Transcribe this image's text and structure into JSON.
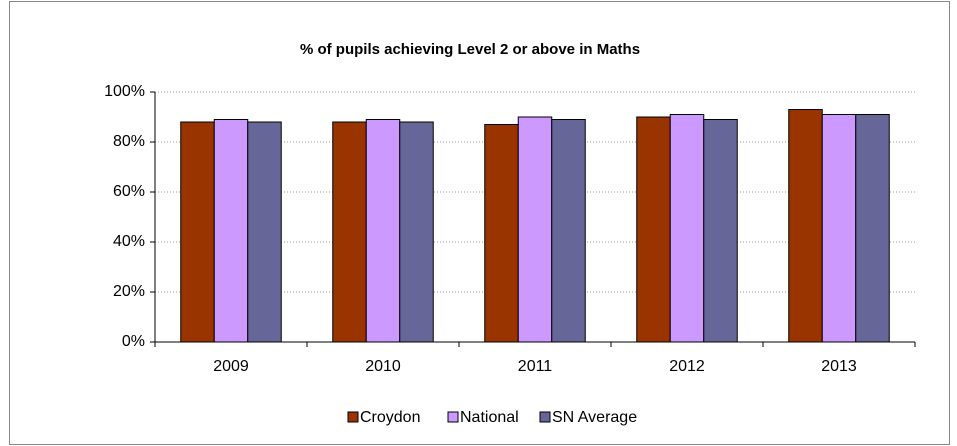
{
  "chart_data": {
    "type": "bar",
    "title": "% of pupils achieving Level 2 or above in Maths",
    "categories": [
      "2009",
      "2010",
      "2011",
      "2012",
      "2013"
    ],
    "series": [
      {
        "name": "Croydon",
        "color": "#993300",
        "values": [
          88,
          88,
          87,
          90,
          93
        ]
      },
      {
        "name": "National",
        "color": "#cc99ff",
        "values": [
          89,
          89,
          90,
          91,
          91
        ]
      },
      {
        "name": "SN Average",
        "color": "#666699",
        "values": [
          88,
          88,
          89,
          89,
          91
        ]
      }
    ],
    "ylim": [
      0,
      100
    ],
    "yticks": [
      {
        "value": 0,
        "label": "0%"
      },
      {
        "value": 20,
        "label": "20%"
      },
      {
        "value": 40,
        "label": "40%"
      },
      {
        "value": 60,
        "label": "60%"
      },
      {
        "value": 80,
        "label": "80%"
      },
      {
        "value": 100,
        "label": "100%"
      }
    ],
    "grid": true,
    "legend": "bottom"
  }
}
